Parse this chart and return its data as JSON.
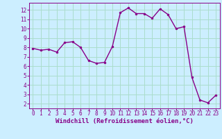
{
  "x": [
    0,
    1,
    2,
    3,
    4,
    5,
    6,
    7,
    8,
    9,
    10,
    11,
    12,
    13,
    14,
    15,
    16,
    17,
    18,
    19,
    20,
    21,
    22,
    23
  ],
  "y": [
    7.9,
    7.7,
    7.8,
    7.5,
    8.5,
    8.6,
    8.0,
    6.6,
    6.3,
    6.4,
    8.1,
    11.7,
    12.2,
    11.6,
    11.6,
    11.1,
    12.1,
    11.5,
    10.0,
    10.2,
    4.8,
    2.4,
    2.1,
    2.9
  ],
  "line_color": "#880088",
  "marker": "o",
  "marker_size": 2.0,
  "background_color": "#cceeff",
  "grid_color": "#aaddcc",
  "xlabel": "Windchill (Refroidissement éolien,°C)",
  "xlabel_color": "#880088",
  "tick_color": "#880088",
  "xlim": [
    -0.5,
    23.5
  ],
  "ylim": [
    1.5,
    12.75
  ],
  "yticks": [
    2,
    3,
    4,
    5,
    6,
    7,
    8,
    9,
    10,
    11,
    12
  ],
  "xticks": [
    0,
    1,
    2,
    3,
    4,
    5,
    6,
    7,
    8,
    9,
    10,
    11,
    12,
    13,
    14,
    15,
    16,
    17,
    18,
    19,
    20,
    21,
    22,
    23
  ],
  "line_width": 1.0,
  "tick_fontsize": 5.5,
  "xlabel_fontsize": 6.5
}
